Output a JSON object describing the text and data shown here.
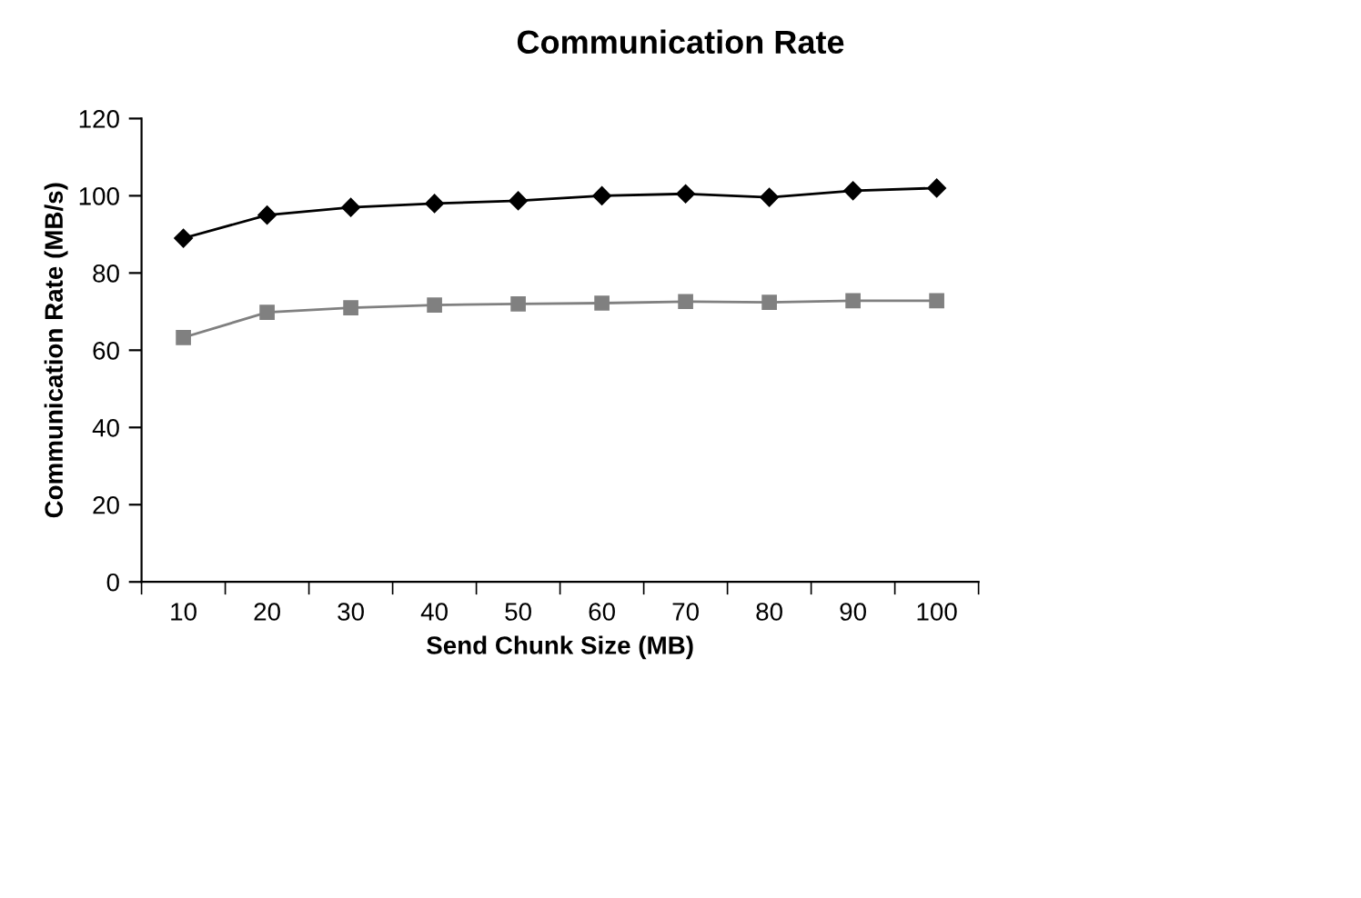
{
  "chart_data": {
    "type": "line",
    "title": "Communication Rate",
    "xlabel": "Send Chunk Size (MB)",
    "ylabel": "Communication Rate (MB/s)",
    "categories": [
      "10",
      "20",
      "30",
      "40",
      "50",
      "60",
      "70",
      "80",
      "90",
      "100"
    ],
    "series": [
      {
        "color": "#000000",
        "marker": "diamond",
        "values": [
          89,
          95,
          97,
          98,
          98.7,
          100,
          100.5,
          99.6,
          101.3,
          102
        ]
      },
      {
        "color": "#808080",
        "marker": "square",
        "values": [
          63.3,
          69.8,
          71,
          71.7,
          72,
          72.2,
          72.6,
          72.4,
          72.8,
          72.8
        ]
      }
    ],
    "ylim": [
      0,
      120
    ],
    "yticks": [
      0,
      20,
      40,
      60,
      80,
      100,
      120
    ],
    "grid": false,
    "line_style": "solid"
  }
}
